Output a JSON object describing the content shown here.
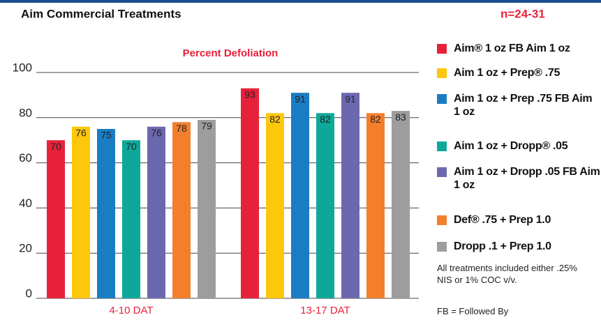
{
  "chart_data": {
    "type": "bar",
    "title": "Aim Commercial Treatments",
    "sample_size": "n=24-31",
    "subtitle": "Percent Defoliation",
    "categories": [
      "4-10 DAT",
      "13-17 DAT"
    ],
    "series": [
      {
        "name": "Aim® 1 oz FB Aim 1 oz",
        "color": "#e8213a",
        "values": [
          70,
          93
        ]
      },
      {
        "name": "Aim 1 oz + Prep® .75",
        "color": "#fdc70c",
        "values": [
          76,
          82
        ]
      },
      {
        "name": "Aim 1 oz + Prep .75 FB Aim 1 oz",
        "color": "#1a7dc4",
        "values": [
          75,
          91
        ]
      },
      {
        "name": "Aim 1 oz + Dropp® .05",
        "color": "#0ea89a",
        "values": [
          70,
          82
        ]
      },
      {
        "name": "Aim 1 oz + Dropp .05 FB Aim 1 oz",
        "color": "#6c68b0",
        "values": [
          76,
          91
        ]
      },
      {
        "name": "Def® .75 + Prep 1.0",
        "color": "#f37f2d",
        "values": [
          78,
          82
        ]
      },
      {
        "name": "Dropp .1 + Prep 1.0",
        "color": "#9d9d9f",
        "values": [
          79,
          83
        ]
      }
    ],
    "ylim": [
      0,
      100
    ],
    "yticks": [
      0,
      20,
      40,
      60,
      80,
      100
    ],
    "grid": true,
    "notes": [
      "All treatments included either .25% NIS or 1% COC v/v.",
      "FB = Followed By"
    ]
  }
}
